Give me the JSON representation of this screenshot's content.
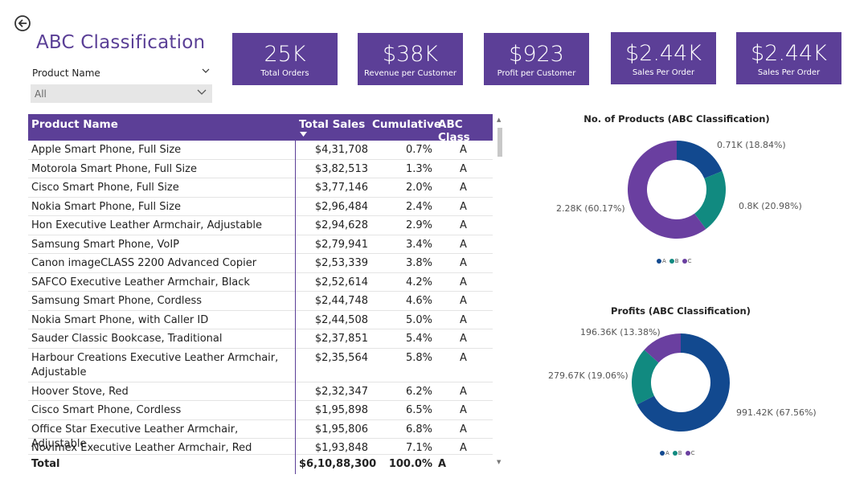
{
  "page": {
    "title": "ABC Classification"
  },
  "slicer": {
    "label": "Product Name",
    "value": "All"
  },
  "kpis": [
    {
      "value": "25K",
      "label": "Total Orders"
    },
    {
      "value": "$38K",
      "label": "Revenue per Customer"
    },
    {
      "value": "$923",
      "label": "Profit per Customer"
    },
    {
      "value": "$2.44K",
      "label": "Sales Per Order"
    },
    {
      "value": "$2.44K",
      "label": "Sales Per Order"
    }
  ],
  "table": {
    "columns": [
      "Product Name",
      "Total Sales",
      "Cumulative",
      "ABC Class"
    ],
    "rows": [
      {
        "name": "Apple Smart Phone, Full Size",
        "sales": "$4,31,708",
        "cum": "0.7%",
        "abc": "A"
      },
      {
        "name": "Motorola Smart Phone, Full Size",
        "sales": "$3,82,513",
        "cum": "1.3%",
        "abc": "A"
      },
      {
        "name": "Cisco Smart Phone, Full Size",
        "sales": "$3,77,146",
        "cum": "2.0%",
        "abc": "A"
      },
      {
        "name": "Nokia Smart Phone, Full Size",
        "sales": "$2,96,484",
        "cum": "2.4%",
        "abc": "A"
      },
      {
        "name": "Hon Executive Leather Armchair, Adjustable",
        "sales": "$2,94,628",
        "cum": "2.9%",
        "abc": "A"
      },
      {
        "name": "Samsung Smart Phone, VoIP",
        "sales": "$2,79,941",
        "cum": "3.4%",
        "abc": "A"
      },
      {
        "name": "Canon imageCLASS 2200 Advanced Copier",
        "sales": "$2,53,339",
        "cum": "3.8%",
        "abc": "A"
      },
      {
        "name": "SAFCO Executive Leather Armchair, Black",
        "sales": "$2,52,614",
        "cum": "4.2%",
        "abc": "A"
      },
      {
        "name": "Samsung Smart Phone, Cordless",
        "sales": "$2,44,748",
        "cum": "4.6%",
        "abc": "A"
      },
      {
        "name": "Nokia Smart Phone, with Caller ID",
        "sales": "$2,44,508",
        "cum": "5.0%",
        "abc": "A"
      },
      {
        "name": "Sauder Classic Bookcase, Traditional",
        "sales": "$2,37,851",
        "cum": "5.4%",
        "abc": "A"
      },
      {
        "name": "Harbour Creations Executive Leather Armchair, Adjustable",
        "sales": "$2,35,564",
        "cum": "5.8%",
        "abc": "A"
      },
      {
        "name": "Hoover Stove, Red",
        "sales": "$2,32,347",
        "cum": "6.2%",
        "abc": "A"
      },
      {
        "name": "Cisco Smart Phone, Cordless",
        "sales": "$1,95,898",
        "cum": "6.5%",
        "abc": "A"
      },
      {
        "name": "Office Star Executive Leather Armchair, Adjustable",
        "sales": "$1,95,806",
        "cum": "6.8%",
        "abc": "A"
      },
      {
        "name": "Novimex Executive Leather Armchair, Red",
        "sales": "$1,93,848",
        "cum": "7.1%",
        "abc": "A"
      }
    ],
    "total": {
      "name": "Total",
      "sales": "$6,10,88,300",
      "cum": "100.0%",
      "abc": "A"
    }
  },
  "chart_data": [
    {
      "type": "pie",
      "title": "No. of Products (ABC Classification)",
      "categories": [
        "A",
        "B",
        "C"
      ],
      "values": [
        0.71,
        0.8,
        2.28
      ],
      "labels": [
        "0.71K (18.84%)",
        "0.8K (20.98%)",
        "2.28K (60.17%)"
      ],
      "percent": [
        18.84,
        20.98,
        60.17
      ],
      "colors": [
        "#12498f",
        "#118a80",
        "#6a3fa0"
      ],
      "legend": "bottom"
    },
    {
      "type": "pie",
      "title": "Profits (ABC Classification)",
      "categories": [
        "A",
        "B",
        "C"
      ],
      "values": [
        991.42,
        279.67,
        196.36
      ],
      "labels": [
        "991.42K (67.56%)",
        "279.67K (19.06%)",
        "196.36K (13.38%)"
      ],
      "percent": [
        67.56,
        19.06,
        13.38
      ],
      "colors": [
        "#12498f",
        "#118a80",
        "#6a3fa0"
      ],
      "legend": "bottom"
    }
  ]
}
